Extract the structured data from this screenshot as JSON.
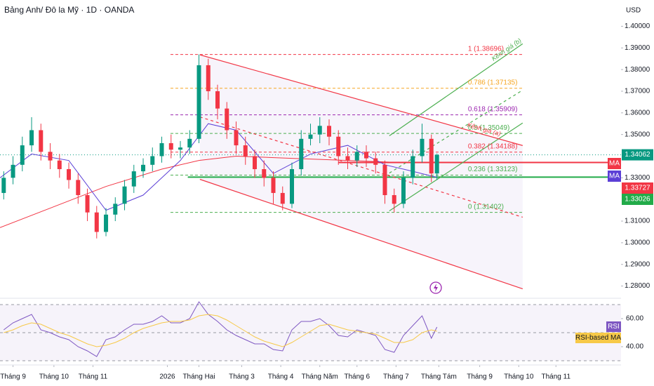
{
  "chart_data": {
    "type": "candlestick",
    "title": "Bảng Anh/ Đô la Mỹ · 1D · OANDA",
    "currency": "USD",
    "xlim": [
      -7,
      327
    ],
    "xticks": [
      {
        "value": 0,
        "label": "Tháng 9"
      },
      {
        "value": 22,
        "label": "Tháng 10"
      },
      {
        "value": 43,
        "label": "Tháng 11"
      },
      {
        "value": 83,
        "label": "2026"
      },
      {
        "value": 100,
        "label": "Tháng Hai"
      },
      {
        "value": 123,
        "label": "Tháng 3"
      },
      {
        "value": 144,
        "label": "Tháng 4"
      },
      {
        "value": 165,
        "label": "Tháng Năm"
      },
      {
        "value": 185,
        "label": "Tháng 6"
      },
      {
        "value": 206,
        "label": "Tháng 7"
      },
      {
        "value": 229,
        "label": "Tháng Tám"
      },
      {
        "value": 251,
        "label": "Tháng 9"
      },
      {
        "value": 272,
        "label": "Tháng 10"
      },
      {
        "value": 292,
        "label": "Tháng 11"
      }
    ],
    "ylim": [
      1.275,
      1.405
    ],
    "yticks": [
      {
        "value": 1.4,
        "label": "1.40000"
      },
      {
        "value": 1.39,
        "label": "1.39000"
      },
      {
        "value": 1.38,
        "label": "1.38000"
      },
      {
        "value": 1.37,
        "label": "1.37000"
      },
      {
        "value": 1.36,
        "label": "1.36000"
      },
      {
        "value": 1.35,
        "label": "1.35000"
      },
      {
        "value": 1.33,
        "label": "1.33000"
      },
      {
        "value": 1.31,
        "label": "1.31000"
      },
      {
        "value": 1.3,
        "label": "1.30000"
      },
      {
        "value": 1.29,
        "label": "1.29000"
      },
      {
        "value": 1.28,
        "label": "1.28000"
      }
    ],
    "candles": {
      "up_color": "#089981",
      "down_color": "#f23645",
      "x": [
        -5,
        0,
        5,
        10,
        15,
        20,
        25,
        30,
        35,
        40,
        45,
        50,
        55,
        60,
        65,
        70,
        75,
        80,
        85,
        90,
        95,
        100,
        105,
        110,
        115,
        120,
        125,
        130,
        135,
        140,
        145,
        150,
        155,
        160,
        165,
        170,
        175,
        180,
        185,
        190,
        195,
        200,
        205,
        210,
        215,
        220,
        225,
        228
      ],
      "open": [
        1.323,
        1.33,
        1.336,
        1.345,
        1.352,
        1.342,
        1.338,
        1.334,
        1.329,
        1.322,
        1.314,
        1.305,
        1.313,
        1.318,
        1.326,
        1.333,
        1.336,
        1.34,
        1.346,
        1.343,
        1.344,
        1.348,
        1.382,
        1.37,
        1.362,
        1.352,
        1.345,
        1.34,
        1.334,
        1.33,
        1.323,
        1.318,
        1.334,
        1.348,
        1.35,
        1.354,
        1.349,
        1.34,
        1.338,
        1.342,
        1.339,
        1.336,
        1.322,
        1.318,
        1.33,
        1.34,
        1.348,
        1.332
      ],
      "high": [
        1.333,
        1.34,
        1.349,
        1.358,
        1.355,
        1.346,
        1.341,
        1.337,
        1.332,
        1.325,
        1.317,
        1.316,
        1.321,
        1.329,
        1.336,
        1.339,
        1.344,
        1.349,
        1.35,
        1.347,
        1.352,
        1.387,
        1.385,
        1.373,
        1.365,
        1.356,
        1.349,
        1.343,
        1.338,
        1.333,
        1.326,
        1.337,
        1.352,
        1.355,
        1.358,
        1.357,
        1.352,
        1.344,
        1.345,
        1.345,
        1.342,
        1.338,
        1.325,
        1.333,
        1.343,
        1.355,
        1.35,
        1.3412
      ],
      "low": [
        1.32,
        1.327,
        1.333,
        1.342,
        1.338,
        1.334,
        1.33,
        1.325,
        1.318,
        1.31,
        1.302,
        1.303,
        1.31,
        1.315,
        1.323,
        1.33,
        1.333,
        1.337,
        1.339,
        1.339,
        1.341,
        1.346,
        1.366,
        1.357,
        1.348,
        1.341,
        1.336,
        1.33,
        1.326,
        1.318,
        1.315,
        1.316,
        1.331,
        1.345,
        1.346,
        1.345,
        1.336,
        1.334,
        1.335,
        1.335,
        1.332,
        1.318,
        1.314,
        1.316,
        1.327,
        1.337,
        1.328,
        1.329
      ],
      "close": [
        1.33,
        1.336,
        1.345,
        1.352,
        1.342,
        1.338,
        1.334,
        1.329,
        1.322,
        1.314,
        1.305,
        1.313,
        1.318,
        1.326,
        1.333,
        1.336,
        1.34,
        1.346,
        1.343,
        1.344,
        1.348,
        1.382,
        1.37,
        1.362,
        1.352,
        1.345,
        1.34,
        1.334,
        1.33,
        1.323,
        1.318,
        1.334,
        1.348,
        1.35,
        1.354,
        1.349,
        1.34,
        1.338,
        1.342,
        1.339,
        1.336,
        1.322,
        1.318,
        1.33,
        1.34,
        1.348,
        1.332,
        1.3406
      ]
    },
    "lines": [
      {
        "name": "MA",
        "color": "#f23645",
        "x": [
          -7,
          20,
          50,
          80,
          100,
          120,
          150,
          180,
          210,
          228
        ],
        "values": [
          1.307,
          1.316,
          1.326,
          1.334,
          1.338,
          1.34,
          1.339,
          1.338,
          1.337,
          1.3373
        ]
      },
      {
        "name": "MA",
        "color": "#5b3fd6",
        "x": [
          -7,
          10,
          30,
          50,
          70,
          90,
          105,
          120,
          140,
          160,
          180,
          200,
          215,
          228
        ],
        "values": [
          1.33,
          1.341,
          1.338,
          1.315,
          1.322,
          1.338,
          1.355,
          1.352,
          1.332,
          1.341,
          1.345,
          1.336,
          1.333,
          1.3302
        ]
      }
    ],
    "price_labels": [
      {
        "value": 1.33727,
        "color": "#f23645"
      },
      {
        "value": 1.33026,
        "color": "#22ab49"
      }
    ],
    "last_price": {
      "value": 1.34062,
      "color": "#089981"
    },
    "hlines": [
      {
        "value": 1.3371,
        "x_start": 175,
        "color": "#f23645"
      },
      {
        "value": 1.3303,
        "x_start": 94,
        "color": "#22ab49"
      }
    ],
    "fib": {
      "x_range": [
        84.7,
        274.1
      ],
      "levels": [
        {
          "value": 1.38696,
          "label": "1 (1.38696)",
          "color": "#f23645"
        },
        {
          "value": 1.37135,
          "label": "0.786 (1.37135)",
          "color": "#f5a623"
        },
        {
          "value": 1.35909,
          "label": "0.618 (1.35909)",
          "color": "#9c27b0"
        },
        {
          "value": 1.35049,
          "label": "0.5 (1.35049)",
          "color": "#4caf50"
        },
        {
          "value": 1.34188,
          "label": "0.382 (1.34188)",
          "color": "#f23645"
        },
        {
          "value": 1.33123,
          "label": "0.236 (1.33123)",
          "color": "#4caf50"
        },
        {
          "value": 1.31402,
          "label": "0 (1.31402)",
          "color": "#4caf50"
        }
      ]
    },
    "channels": [
      {
        "label": "Kênh giá (b)",
        "color": "#4caf50",
        "lines": [
          {
            "x": [
              202.4,
              274.1
            ],
            "y": [
              1.3494,
              1.3919
            ],
            "dashed": false
          },
          {
            "x": [
              202.4,
              274.1
            ],
            "y": [
              1.3322,
              1.3705
            ],
            "dashed": true
          },
          {
            "x": [
              202.4,
              274.1
            ],
            "y": [
              1.3147,
              1.3553
            ],
            "dashed": false
          }
        ]
      },
      {
        "label": "Kênh giá (a)",
        "color": "#f23645",
        "lines": [
          {
            "x": [
              100.5,
              274.1
            ],
            "y": [
              1.3868,
              1.3449
            ],
            "dashed": false
          },
          {
            "x": [
              100.5,
              274.1
            ],
            "y": [
              1.3581,
              1.3118
            ],
            "dashed": true
          },
          {
            "x": [
              100.5,
              274.1
            ],
            "y": [
              1.3293,
              1.2787
            ],
            "dashed": false
          }
        ]
      }
    ],
    "rsi": {
      "name": "RSI",
      "color": "#7e57c2",
      "ma_name": "RSI-based MA",
      "ma_color": "#f7c948",
      "ylim": [
        29,
        71
      ],
      "yticks": [
        {
          "value": 60,
          "label": "60.00"
        },
        {
          "value": 40,
          "label": "40.00"
        }
      ],
      "bands": [
        70,
        50,
        30
      ],
      "values": [
        52,
        57,
        60,
        63,
        52,
        50,
        47,
        45,
        40,
        37,
        33,
        45,
        47,
        52,
        56,
        56,
        58,
        62,
        57,
        57,
        60,
        72,
        63,
        58,
        52,
        48,
        45,
        42,
        42,
        38,
        37,
        52,
        58,
        58,
        60,
        55,
        48,
        47,
        52,
        50,
        48,
        38,
        36,
        48,
        55,
        62,
        46,
        54
      ],
      "ma_values": [
        50,
        52,
        55,
        57,
        56,
        53,
        50,
        48,
        45,
        42,
        40,
        41,
        43,
        46,
        50,
        53,
        55,
        57,
        58,
        58,
        59,
        62,
        63,
        62,
        59,
        55,
        51,
        47,
        44,
        42,
        40,
        43,
        47,
        51,
        55,
        56,
        54,
        52,
        51,
        50,
        49,
        46,
        43,
        43,
        45,
        50,
        52,
        51
      ]
    }
  }
}
